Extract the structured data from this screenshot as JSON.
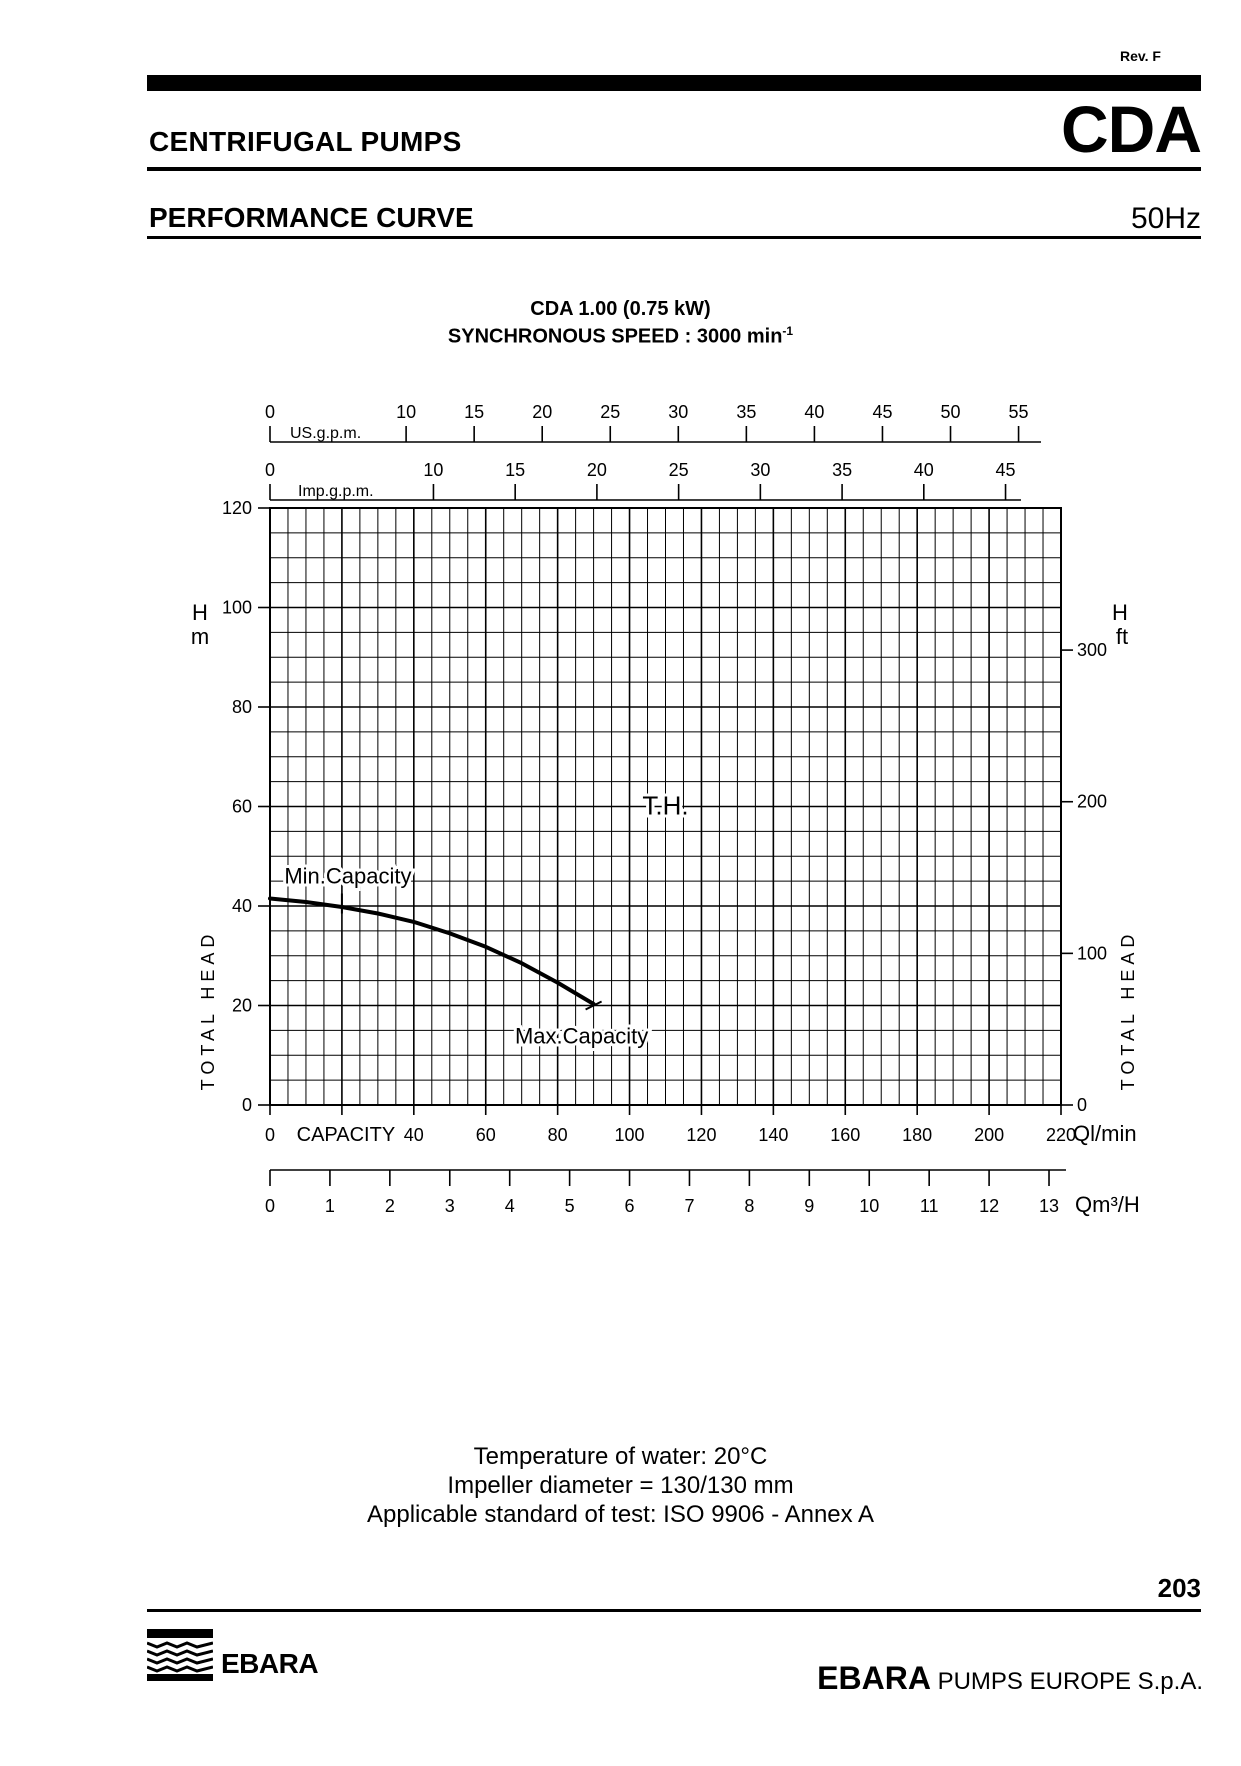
{
  "header": {
    "revision": "Rev. F",
    "section": "CENTRIFUGAL PUMPS",
    "model_series": "CDA",
    "document_type": "PERFORMANCE CURVE",
    "frequency": "50Hz"
  },
  "chart_title": {
    "line1": "CDA 1.00 (0.75 kW)",
    "line2_text": "SYNCHRONOUS SPEED : 3000 min",
    "line2_superscript": "-1"
  },
  "chart_data": {
    "type": "line",
    "series": [
      {
        "name": "T.H.",
        "x": [
          0,
          10,
          20,
          30,
          40,
          50,
          60,
          70,
          80,
          90
        ],
        "y": [
          41.5,
          40.8,
          39.8,
          38.5,
          36.8,
          34.5,
          31.8,
          28.5,
          24.6,
          20.3
        ]
      }
    ],
    "x_unit_label": "Ql/min",
    "x_axis_text": "CAPACITY",
    "xlim": [
      0,
      220
    ],
    "x_ticks": [
      0,
      20,
      40,
      60,
      80,
      100,
      120,
      140,
      160,
      180,
      200,
      220
    ],
    "x_tick_labels": [
      "0",
      "",
      "40",
      "60",
      "80",
      "100",
      "120",
      "140",
      "160",
      "180",
      "200",
      "220"
    ],
    "ylabel_left": "TOTAL HEAD",
    "ylabel_left_unit": [
      "H",
      "m"
    ],
    "ylim": [
      0,
      120
    ],
    "y_ticks": [
      0,
      20,
      40,
      60,
      80,
      100,
      120
    ],
    "ylabel_right": "TOTAL HEAD",
    "ylabel_right_unit": [
      "H",
      "ft"
    ],
    "y_right_ticks_ft": [
      0,
      100,
      200,
      300
    ],
    "secondary_x_axes": [
      {
        "label": "Qm³/H",
        "conversion_per_lmin": 0.06,
        "ticks": [
          0,
          1,
          2,
          3,
          4,
          5,
          6,
          7,
          8,
          9,
          10,
          11,
          12,
          13
        ]
      },
      {
        "label": "US.g.p.m.",
        "conversion_per_lmin": 0.264172,
        "ticks": [
          0,
          10,
          15,
          20,
          25,
          30,
          35,
          40,
          45,
          50,
          55
        ]
      },
      {
        "label": "Imp.g.p.m.",
        "conversion_per_lmin": 0.219969,
        "ticks": [
          0,
          10,
          15,
          20,
          25,
          30,
          35,
          40,
          45
        ]
      }
    ],
    "annotations": [
      {
        "text": "T.H.",
        "x": 110,
        "y": 60
      },
      {
        "text": "Min.Capacity",
        "x": 20,
        "y": 40.5
      },
      {
        "text": "Max.Capacity",
        "x": 90,
        "y": 20
      }
    ],
    "grid": true
  },
  "notes": [
    "Temperature of water: 20°C",
    "Impeller diameter = 130/130 mm",
    "Applicable standard of test: ISO 9906 - Annex A"
  ],
  "footer": {
    "page_number": "203",
    "logo_text": "EBARA",
    "brand_bold": "EBARA",
    "brand_rest": " PUMPS EUROPE S.p.A."
  }
}
